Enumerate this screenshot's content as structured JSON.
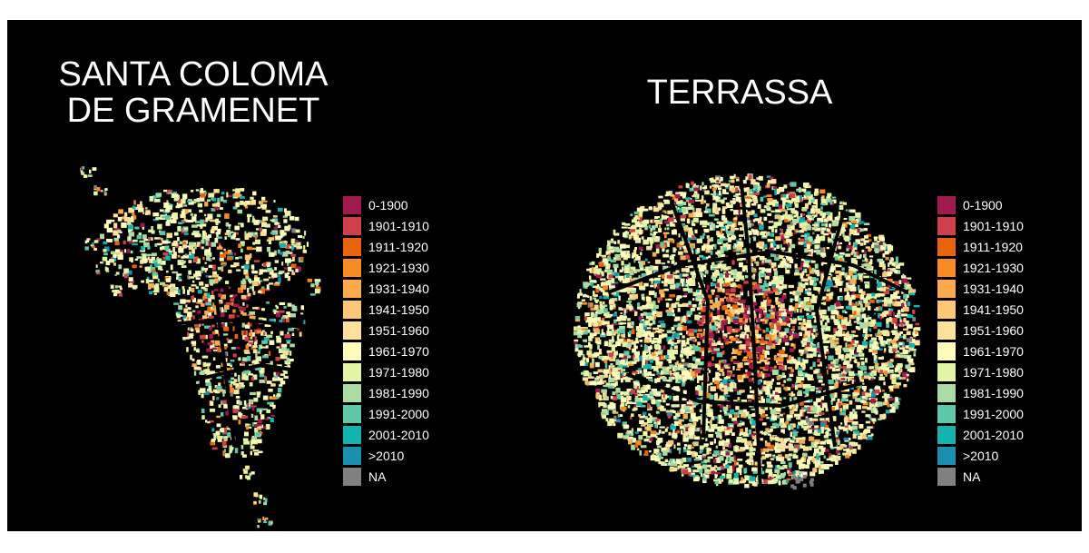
{
  "maps": [
    {
      "title": "SANTA COLOMA\nDE GRAMENET"
    },
    {
      "title": "TERRASSA"
    }
  ],
  "legend": {
    "items": [
      {
        "label": "0-1900",
        "color": "#9e1a4f"
      },
      {
        "label": "1901-1910",
        "color": "#d0404a"
      },
      {
        "label": "1911-1920",
        "color": "#e8650e"
      },
      {
        "label": "1921-1930",
        "color": "#f58b22"
      },
      {
        "label": "1931-1940",
        "color": "#fbab4e"
      },
      {
        "label": "1941-1950",
        "color": "#fdc875"
      },
      {
        "label": "1951-1960",
        "color": "#fee09a"
      },
      {
        "label": "1961-1970",
        "color": "#fffbbb"
      },
      {
        "label": "1971-1980",
        "color": "#e4f4a5"
      },
      {
        "label": "1981-1990",
        "color": "#abdca3"
      },
      {
        "label": "1991-2000",
        "color": "#5dc7a8"
      },
      {
        "label": "2001-2010",
        "color": "#13b3b0"
      },
      {
        "label": ">2010",
        "color": "#1c8fb0"
      },
      {
        "label": "NA",
        "color": "#808080"
      }
    ]
  }
}
